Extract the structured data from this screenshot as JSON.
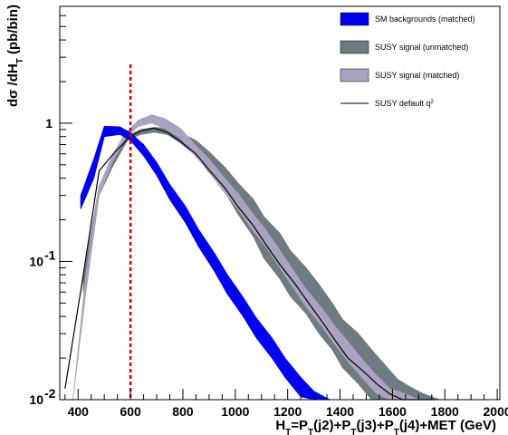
{
  "chart_data": {
    "type": "area",
    "xlabel": "H_T=P_T(j2)+P_T(j3)+P_T(j4)+MET (GeV)",
    "ylabel": "dσ /dH_T (pb/bin)",
    "xlim": [
      330,
      2010
    ],
    "ylim": [
      0.01,
      7
    ],
    "y_scale": "log",
    "x_ticks": [
      400,
      600,
      800,
      1000,
      1200,
      1400,
      1600,
      1800,
      2000
    ],
    "y_tick_labels": [
      {
        "value": 0.01,
        "base": "10",
        "exp": "-2"
      },
      {
        "value": 0.1,
        "base": "10",
        "exp": "-1"
      },
      {
        "value": 1,
        "base": "1",
        "exp": ""
      }
    ],
    "reference_line": {
      "x": 600,
      "color": "#dd0000",
      "style": "dashed"
    },
    "legend_position": "top-right",
    "series": [
      {
        "name": "SUSY signal (unmatched)",
        "style": "band",
        "color": "#6e7b80",
        "x": [
          420,
          480,
          530,
          590,
          640,
          690,
          740,
          790,
          850,
          900,
          960,
          1010,
          1070,
          1110,
          1170,
          1210,
          1270,
          1320,
          1370,
          1410,
          1470,
          1520,
          1570,
          1620,
          1680,
          1720,
          1780,
          1830,
          1890,
          1930,
          1960
        ],
        "upper": [
          0.075,
          0.35,
          0.55,
          0.82,
          0.9,
          0.93,
          0.92,
          0.85,
          0.75,
          0.62,
          0.48,
          0.37,
          0.28,
          0.21,
          0.16,
          0.12,
          0.09,
          0.068,
          0.05,
          0.038,
          0.03,
          0.023,
          0.018,
          0.014,
          0.012,
          0.011,
          0.01,
          0.01,
          0.01,
          0.01,
          0.01
        ],
        "lower": [
          0.06,
          0.3,
          0.48,
          0.76,
          0.83,
          0.86,
          0.83,
          0.72,
          0.58,
          0.44,
          0.32,
          0.22,
          0.15,
          0.105,
          0.075,
          0.056,
          0.042,
          0.03,
          0.023,
          0.017,
          0.013,
          0.01,
          0.01,
          0.01,
          0.01,
          0.01,
          0.01,
          0.01,
          0.01,
          0.01,
          0.01
        ]
      },
      {
        "name": "SUSY signal (matched)",
        "style": "band",
        "color": "#a9a3c0",
        "x": [
          380,
          430,
          480,
          530,
          580,
          630,
          680,
          730,
          790,
          840,
          900,
          950,
          1010,
          1060,
          1120,
          1170,
          1220,
          1270,
          1330,
          1380,
          1440,
          1490,
          1540,
          1590,
          1650,
          1700,
          1760,
          1810
        ],
        "upper": [
          0.01,
          0.08,
          0.35,
          0.58,
          0.85,
          1.05,
          1.15,
          1.08,
          0.92,
          0.72,
          0.55,
          0.42,
          0.31,
          0.23,
          0.165,
          0.12,
          0.087,
          0.063,
          0.046,
          0.034,
          0.025,
          0.019,
          0.015,
          0.012,
          0.011,
          0.01,
          0.01,
          0.01
        ],
        "lower": [
          0.01,
          0.06,
          0.3,
          0.52,
          0.78,
          0.95,
          1.0,
          0.92,
          0.78,
          0.6,
          0.45,
          0.33,
          0.24,
          0.175,
          0.125,
          0.09,
          0.065,
          0.047,
          0.034,
          0.025,
          0.018,
          0.014,
          0.011,
          0.01,
          0.01,
          0.01,
          0.01,
          0.01
        ]
      },
      {
        "name": "SM backgrounds (matched)",
        "style": "band",
        "color": "#0000ee",
        "x": [
          410,
          460,
          500,
          560,
          600,
          650,
          700,
          750,
          810,
          860,
          920,
          970,
          1030,
          1080,
          1140,
          1190,
          1250,
          1300,
          1360,
          1410
        ],
        "upper": [
          0.3,
          0.55,
          0.95,
          0.94,
          0.85,
          0.7,
          0.52,
          0.36,
          0.25,
          0.17,
          0.115,
          0.08,
          0.055,
          0.039,
          0.028,
          0.02,
          0.0145,
          0.0115,
          0.01,
          0.01
        ],
        "lower": [
          0.24,
          0.4,
          0.8,
          0.83,
          0.75,
          0.58,
          0.42,
          0.28,
          0.19,
          0.128,
          0.085,
          0.058,
          0.04,
          0.028,
          0.02,
          0.0145,
          0.0105,
          0.01,
          0.01,
          0.01
        ]
      },
      {
        "name": "SUSY default q²",
        "style": "line",
        "color": "#000000",
        "x": [
          350,
          420,
          480,
          540,
          600,
          640,
          690,
          740,
          790,
          850,
          900,
          960,
          1010,
          1070,
          1120,
          1170,
          1230,
          1280,
          1330,
          1380,
          1430,
          1490,
          1540,
          1590,
          1640,
          1700,
          1760
        ],
        "y": [
          0.012,
          0.08,
          0.45,
          0.62,
          0.8,
          0.88,
          0.92,
          0.86,
          0.74,
          0.6,
          0.46,
          0.34,
          0.25,
          0.18,
          0.13,
          0.095,
          0.068,
          0.05,
          0.037,
          0.027,
          0.02,
          0.016,
          0.013,
          0.011,
          0.01,
          0.01,
          0.01
        ]
      }
    ],
    "legend": [
      {
        "label": "SM backgrounds (matched)",
        "kind": "box",
        "color": "#0000ee"
      },
      {
        "label": "SUSY signal (unmatched)",
        "kind": "box",
        "color": "#6e7b80"
      },
      {
        "label": "SUSY signal (matched)",
        "kind": "box",
        "color": "#a9a3c0"
      },
      {
        "label": "SUSY default q",
        "label_superscript": "2",
        "kind": "line",
        "color": "#000000"
      }
    ]
  }
}
